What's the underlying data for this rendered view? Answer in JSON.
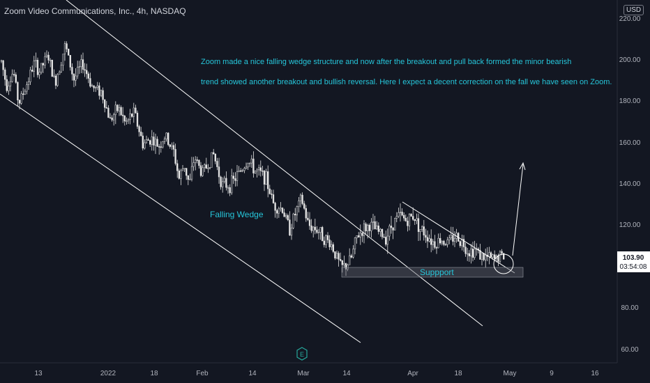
{
  "header": {
    "symbol_title": "Zoom Video Communications, Inc., 4h, NASDAQ",
    "currency": "USD"
  },
  "colors": {
    "background": "#131722",
    "candle": "#e6e6e6",
    "trendline": "#ffffff",
    "annotation_text": "#26c6da",
    "axis_text": "#b2b5be",
    "support_box": "#5d606b",
    "price_label_bg": "#ffffff",
    "price_label_text": "#131722"
  },
  "chart_data": {
    "type": "candlestick",
    "title": "",
    "xlabel": "",
    "ylabel": "",
    "ylim": [
      50,
      226
    ],
    "y_ticks": [
      "60.00",
      "80.00",
      "100.00",
      "120.00",
      "140.00",
      "160.00",
      "180.00",
      "200.00",
      "220.00"
    ],
    "x_ticks": [
      "13",
      "2022",
      "18",
      "Feb",
      "14",
      "Mar",
      "14",
      "Apr",
      "18",
      "May",
      "9",
      "16"
    ],
    "last_price": "103.90",
    "countdown": "03:54:08",
    "annotation": "Zoom made a nice falling wedge structure and now after the breakout and pull back formed the minor bearish trend showed another breakout and bullish reversal. Here I expect a decent correction on the fall we have seen on Zoom.",
    "annotation_lines": [
      "Zoom made a nice falling wedge structure and now after the breakout and pull back formed the minor bearish",
      "trend showed another breakout and bullish reversal. Here I expect a decent correction on the fall we have seen on Zoom."
    ],
    "labels": {
      "wedge": "Falling Wedge",
      "support": "Suppport"
    },
    "event_marker": "E",
    "price_path": [
      [
        0,
        201
      ],
      [
        0.03,
        189
      ],
      [
        0.07,
        196
      ],
      [
        0.1,
        180
      ],
      [
        0.14,
        188
      ],
      [
        0.19,
        200
      ],
      [
        0.22,
        196
      ],
      [
        0.27,
        204
      ],
      [
        0.31,
        190
      ],
      [
        0.37,
        209
      ],
      [
        0.42,
        192
      ],
      [
        0.47,
        200
      ],
      [
        0.53,
        188
      ],
      [
        0.58,
        186
      ],
      [
        0.63,
        172
      ],
      [
        0.68,
        178
      ],
      [
        0.72,
        170
      ],
      [
        0.77,
        176
      ],
      [
        0.82,
        160
      ],
      [
        0.87,
        163
      ],
      [
        0.91,
        159
      ],
      [
        0.95,
        164
      ],
      [
        1,
        156
      ],
      [
        1.03,
        143
      ],
      [
        1.06,
        150
      ],
      [
        1.09,
        140
      ],
      [
        1.12,
        154
      ],
      [
        1.16,
        146
      ],
      [
        1.19,
        149
      ],
      [
        1.23,
        155
      ],
      [
        1.28,
        140
      ],
      [
        1.33,
        140
      ],
      [
        1.37,
        145
      ],
      [
        1.43,
        152
      ],
      [
        1.47,
        147
      ],
      [
        1.53,
        144
      ],
      [
        1.58,
        130
      ],
      [
        1.63,
        128
      ],
      [
        1.67,
        118
      ],
      [
        1.71,
        127
      ],
      [
        1.74,
        133
      ],
      [
        1.78,
        120
      ],
      [
        1.83,
        118
      ],
      [
        1.88,
        113
      ],
      [
        1.91,
        111
      ],
      [
        1.94,
        105
      ],
      [
        1.97,
        99
      ],
      [
        2.0,
        100
      ],
      [
        2.03,
        104
      ],
      [
        2.06,
        114
      ],
      [
        2.1,
        118
      ],
      [
        2.14,
        120
      ],
      [
        2.18,
        117
      ],
      [
        2.23,
        114
      ],
      [
        2.27,
        121
      ],
      [
        2.31,
        125
      ],
      [
        2.35,
        122
      ],
      [
        2.39,
        125
      ],
      [
        2.43,
        118
      ],
      [
        2.47,
        115
      ],
      [
        2.51,
        111
      ],
      [
        2.55,
        113
      ],
      [
        2.59,
        111
      ],
      [
        2.63,
        115
      ],
      [
        2.67,
        112
      ],
      [
        2.71,
        107
      ],
      [
        2.75,
        108
      ],
      [
        2.79,
        104
      ],
      [
        2.82,
        104
      ],
      [
        2.86,
        103
      ],
      [
        2.89,
        105
      ],
      [
        2.92,
        104
      ]
    ]
  }
}
